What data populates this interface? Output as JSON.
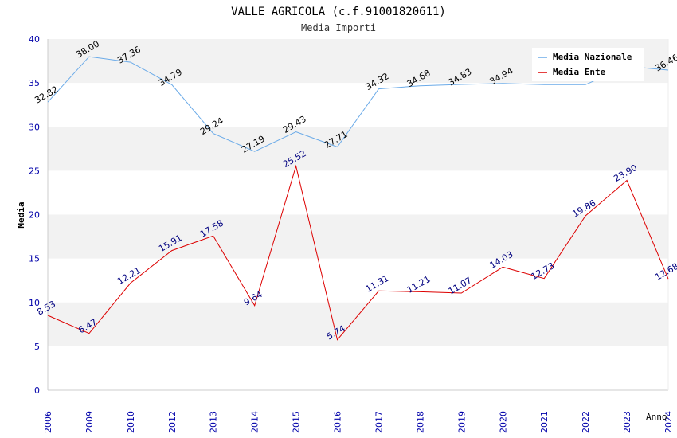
{
  "chart_data": {
    "type": "line",
    "title": "VALLE AGRICOLA (c.f.91001820611)",
    "subtitle": "Media Importi",
    "xlabel": "Anno",
    "ylabel": "Media",
    "ylim": [
      0,
      40
    ],
    "yticks": [
      0,
      5,
      10,
      15,
      20,
      25,
      30,
      35,
      40
    ],
    "grid": true,
    "legend_position": "top-right",
    "categories": [
      "2006",
      "2009",
      "2010",
      "2012",
      "2013",
      "2014",
      "2015",
      "2016",
      "2017",
      "2018",
      "2019",
      "2020",
      "2021",
      "2022",
      "2023",
      "2024"
    ],
    "series": [
      {
        "name": "Media Nazionale",
        "color": "#6aaae8",
        "label_color": "#000000",
        "values": [
          32.82,
          38.0,
          37.36,
          34.79,
          29.24,
          27.19,
          29.43,
          27.71,
          34.32,
          34.68,
          34.83,
          34.94,
          34.8,
          34.8,
          36.9,
          36.46
        ],
        "labels": [
          "32.82",
          "38.00",
          "37.36",
          "34.79",
          "29.24",
          "27.19",
          "29.43",
          "27.71",
          "34.32",
          "34.68",
          "34.83",
          "34.94",
          "",
          "",
          "",
          "36.46"
        ]
      },
      {
        "name": "Media Ente",
        "color": "#dd0000",
        "label_color": "#000080",
        "values": [
          8.53,
          6.47,
          12.21,
          15.91,
          17.58,
          9.64,
          25.52,
          5.74,
          11.31,
          11.21,
          11.07,
          14.03,
          12.73,
          19.86,
          23.9,
          12.68
        ],
        "labels": [
          "8.53",
          "6.47",
          "12.21",
          "15.91",
          "17.58",
          "9.64",
          "25.52",
          "5.74",
          "11.31",
          "11.21",
          "11.07",
          "14.03",
          "12.73",
          "19.86",
          "23.90",
          "12.68"
        ]
      }
    ]
  },
  "colors": {
    "band": "#f2f2f2",
    "axis_text": "#0000aa",
    "title": "#000000",
    "subtitle": "#333333"
  }
}
